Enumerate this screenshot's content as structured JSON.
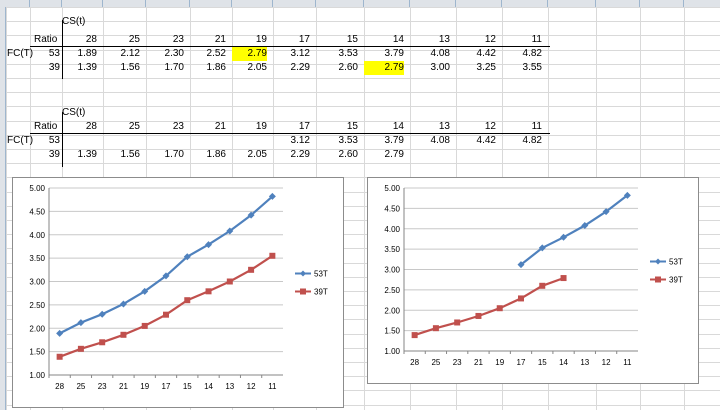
{
  "table1": {
    "cs_label": "CS(t)",
    "ratio_label": "Ratio",
    "fc_label": "FC(T)",
    "headers": [
      "28",
      "25",
      "23",
      "21",
      "19",
      "17",
      "15",
      "14",
      "13",
      "12",
      "11"
    ],
    "rows": [
      {
        "ratio": "53",
        "values": [
          "1.89",
          "2.12",
          "2.30",
          "2.52",
          "2.79",
          "3.12",
          "3.53",
          "3.79",
          "4.08",
          "4.42",
          "4.82"
        ],
        "highlight_index": 4
      },
      {
        "ratio": "39",
        "values": [
          "1.39",
          "1.56",
          "1.70",
          "1.86",
          "2.05",
          "2.29",
          "2.60",
          "2.79",
          "3.00",
          "3.25",
          "3.55"
        ],
        "highlight_index": 7
      }
    ]
  },
  "table2": {
    "cs_label": "CS(t)",
    "ratio_label": "Ratio",
    "fc_label": "FC(T)",
    "headers": [
      "28",
      "25",
      "23",
      "21",
      "19",
      "17",
      "15",
      "14",
      "13",
      "12",
      "11"
    ],
    "rows": [
      {
        "ratio": "53",
        "values": [
          "",
          "",
          "",
          "",
          "",
          "3.12",
          "3.53",
          "3.79",
          "4.08",
          "4.42",
          "4.82"
        ]
      },
      {
        "ratio": "39",
        "values": [
          "1.39",
          "1.56",
          "1.70",
          "1.86",
          "2.05",
          "2.29",
          "2.60",
          "2.79",
          "",
          "",
          ""
        ]
      }
    ]
  },
  "colors": {
    "series_53T": "#4f81bd",
    "series_39T": "#c0504d",
    "highlight": "#ffff00"
  },
  "chart_data": [
    {
      "type": "line",
      "categories": [
        "28",
        "25",
        "23",
        "21",
        "19",
        "17",
        "15",
        "14",
        "13",
        "12",
        "11"
      ],
      "ylim": [
        1.0,
        5.0
      ],
      "yticks": [
        "1.00",
        "1.50",
        "2.00",
        "2.50",
        "3.00",
        "3.50",
        "4.00",
        "4.50",
        "5.00"
      ],
      "grid": true,
      "legend": "right",
      "series": [
        {
          "name": "53T",
          "marker": "diamond",
          "values": [
            1.89,
            2.12,
            2.3,
            2.52,
            2.79,
            3.12,
            3.53,
            3.79,
            4.08,
            4.42,
            4.82
          ]
        },
        {
          "name": "39T",
          "marker": "square",
          "values": [
            1.39,
            1.56,
            1.7,
            1.86,
            2.05,
            2.29,
            2.6,
            2.79,
            3.0,
            3.25,
            3.55
          ]
        }
      ]
    },
    {
      "type": "line",
      "categories": [
        "28",
        "25",
        "23",
        "21",
        "19",
        "17",
        "15",
        "14",
        "13",
        "12",
        "11"
      ],
      "ylim": [
        1.0,
        5.0
      ],
      "yticks": [
        "1.00",
        "1.50",
        "2.00",
        "2.50",
        "3.00",
        "3.50",
        "4.00",
        "4.50",
        "5.00"
      ],
      "grid": true,
      "legend": "right",
      "series": [
        {
          "name": "53T",
          "marker": "diamond",
          "values": [
            null,
            null,
            null,
            null,
            null,
            3.12,
            3.53,
            3.79,
            4.08,
            4.42,
            4.82
          ]
        },
        {
          "name": "39T",
          "marker": "square",
          "values": [
            1.39,
            1.56,
            1.7,
            1.86,
            2.05,
            2.29,
            2.6,
            2.79,
            null,
            null,
            null
          ]
        }
      ]
    }
  ]
}
